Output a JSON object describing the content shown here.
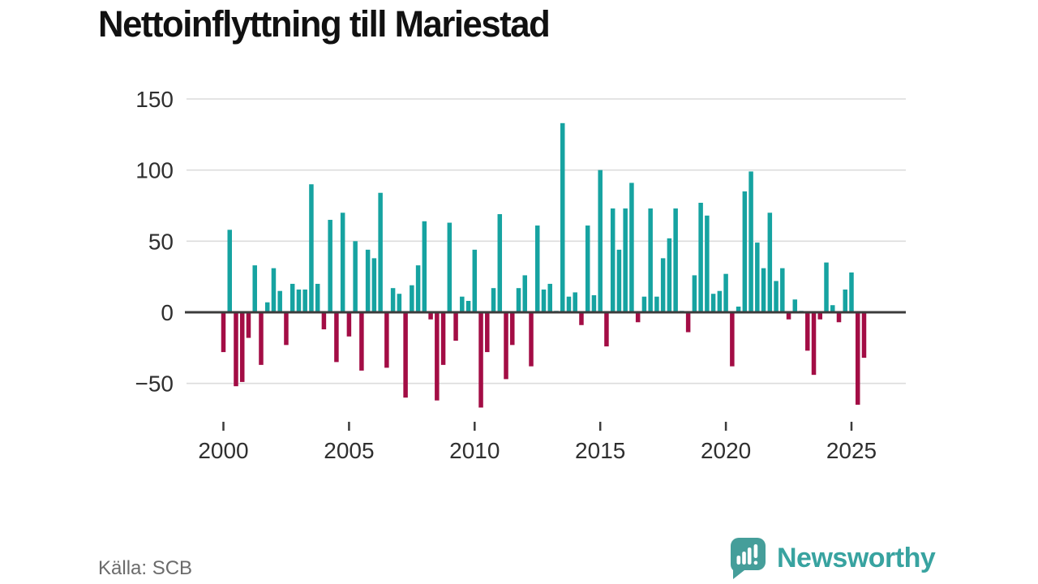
{
  "title": "Nettoinflyttning till Mariestad",
  "source": "Källa: SCB",
  "logo": {
    "text": "Newsworthy",
    "bubble_color": "#459e9a",
    "wordmark_color": "#38a3a0"
  },
  "chart_data": {
    "type": "bar",
    "title": "Nettoinflyttning till Mariestad",
    "frequency": "quarterly",
    "start_year": 2000,
    "start_quarter": 1,
    "values": [
      -28,
      58,
      -52,
      -49,
      -18,
      33,
      -37,
      7,
      31,
      15,
      -23,
      20,
      16,
      16,
      90,
      20,
      -12,
      65,
      -35,
      70,
      -17,
      50,
      -41,
      44,
      38,
      84,
      -39,
      17,
      13,
      -60,
      19,
      33,
      64,
      -5,
      -62,
      -37,
      63,
      -20,
      11,
      8,
      44,
      -67,
      -28,
      17,
      69,
      -47,
      -23,
      17,
      26,
      -38,
      61,
      16,
      20,
      1,
      133,
      11,
      14,
      -9,
      61,
      12,
      100,
      -24,
      73,
      44,
      73,
      91,
      -7,
      11,
      73,
      11,
      38,
      52,
      73,
      1,
      -14,
      26,
      77,
      68,
      13,
      15,
      27,
      -38,
      4,
      85,
      99,
      49,
      31,
      70,
      22,
      31,
      -5,
      9,
      1,
      -27,
      -44,
      -5,
      35,
      5,
      -7,
      16,
      28,
      -65,
      -32
    ],
    "y_ticks": [
      150,
      100,
      50,
      0,
      -50
    ],
    "y_tick_labels": [
      "150",
      "100",
      "50",
      "0",
      "−50"
    ],
    "x_ticks": [
      2000,
      2005,
      2010,
      2015,
      2020,
      2025
    ],
    "x_tick_labels": [
      "2000",
      "2005",
      "2010",
      "2015",
      "2020",
      "2025"
    ],
    "ylim": [
      -75,
      155
    ],
    "grid": true,
    "legend": "none",
    "xlabel": "",
    "ylabel": "",
    "colors": {
      "positive": "#16a3a1",
      "negative": "#a30d45",
      "gridline": "#dcdcdc",
      "zero_line": "#3c3c3c",
      "axis_text": "#2f2f2f"
    }
  }
}
